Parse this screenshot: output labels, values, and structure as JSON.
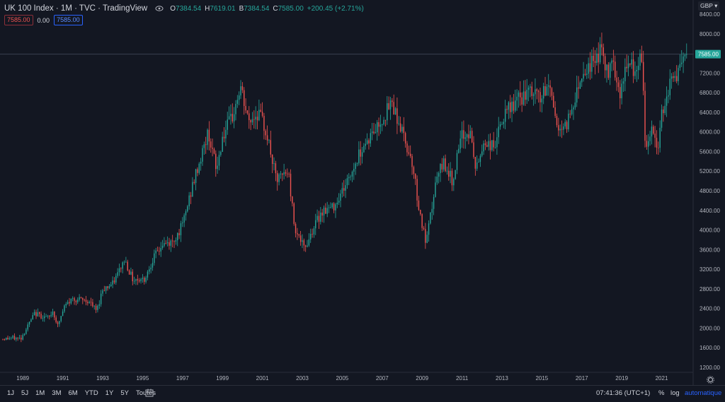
{
  "header": {
    "symbol": "UK 100 Index",
    "interval": "1M",
    "exchange": "TVC",
    "source": "TradingView",
    "open_label": "O",
    "open": "7384.54",
    "high_label": "H",
    "high": "7619.01",
    "low_label": "B",
    "low": "7384.54",
    "close_label": "C",
    "close": "7585.00",
    "change": "+200.45 (+2.71%)"
  },
  "orders": {
    "sell": "7585.00",
    "spread": "0.00",
    "buy": "7585.00"
  },
  "currency": "GBP",
  "bottom_bar": {
    "ranges": [
      "1J",
      "5J",
      "1M",
      "3M",
      "6M",
      "YTD",
      "1Y",
      "5Y",
      "Toutes"
    ],
    "clock": "07:41:36 (UTC+1)",
    "percent": "%",
    "log": "log",
    "auto": "automatique"
  },
  "colors": {
    "background": "#131722",
    "up": "#26a69a",
    "down": "#ef5350",
    "price_line": "#3a4050",
    "price_label_bg": "#26a69a",
    "axis_text": "#b2b5be",
    "accent": "#2962ff"
  },
  "chart_data": {
    "type": "candlestick",
    "timeframe": "monthly",
    "y_axis": {
      "ylim": [
        1200,
        8400
      ],
      "ticks": [
        1200,
        1600,
        2000,
        2400,
        2800,
        3200,
        3600,
        4000,
        4400,
        4800,
        5200,
        5600,
        6000,
        6400,
        6800,
        7200,
        7600,
        8000,
        8400
      ],
      "tick_labels": [
        "1200.00",
        "1600.00",
        "2000.00",
        "2400.00",
        "2800.00",
        "3200.00",
        "3600.00",
        "4000.00",
        "4400.00",
        "4800.00",
        "5200.00",
        "5600.00",
        "6000.00",
        "6400.00",
        "6800.00",
        "7200.00",
        "",
        "8000.00",
        "8400.00"
      ]
    },
    "x_axis": {
      "range": [
        1988.0,
        2022.4
      ],
      "tick_labels": [
        "1989",
        "1991",
        "1993",
        "1995",
        "1997",
        "1999",
        "2001",
        "2003",
        "2005",
        "2007",
        "2009",
        "2011",
        "2013",
        "2015",
        "2017",
        "2019",
        "2021"
      ]
    },
    "last_price": 7585.0,
    "last_price_label": "7585.00",
    "anchors": [
      [
        1988.0,
        1780
      ],
      [
        1988.5,
        1800
      ],
      [
        1988.9,
        1790
      ],
      [
        1989.6,
        2300
      ],
      [
        1990.3,
        2200
      ],
      [
        1990.5,
        2350
      ],
      [
        1990.75,
        2050
      ],
      [
        1991.1,
        2450
      ],
      [
        1991.5,
        2600
      ],
      [
        1992.3,
        2550
      ],
      [
        1992.7,
        2350
      ],
      [
        1993.0,
        2800
      ],
      [
        1993.5,
        2900
      ],
      [
        1994.1,
        3400
      ],
      [
        1994.5,
        3000
      ],
      [
        1995.1,
        3000
      ],
      [
        1995.5,
        3400
      ],
      [
        1996.0,
        3700
      ],
      [
        1996.5,
        3750
      ],
      [
        1997.0,
        4100
      ],
      [
        1997.5,
        4900
      ],
      [
        1998.3,
        6000
      ],
      [
        1998.7,
        5200
      ],
      [
        1999.0,
        5900
      ],
      [
        1999.5,
        6300
      ],
      [
        1999.9,
        6900
      ],
      [
        2000.3,
        6200
      ],
      [
        2000.8,
        6400
      ],
      [
        2001.2,
        6000
      ],
      [
        2001.7,
        5000
      ],
      [
        2002.3,
        5200
      ],
      [
        2002.6,
        4100
      ],
      [
        2003.1,
        3600
      ],
      [
        2003.5,
        4000
      ],
      [
        2004.0,
        4400
      ],
      [
        2004.5,
        4450
      ],
      [
        2005.0,
        4800
      ],
      [
        2005.5,
        5200
      ],
      [
        2006.0,
        5700
      ],
      [
        2006.4,
        5900
      ],
      [
        2006.9,
        6200
      ],
      [
        2007.5,
        6600
      ],
      [
        2008.0,
        6000
      ],
      [
        2008.5,
        5400
      ],
      [
        2008.9,
        4300
      ],
      [
        2009.2,
        3700
      ],
      [
        2009.7,
        5000
      ],
      [
        2010.1,
        5400
      ],
      [
        2010.5,
        5000
      ],
      [
        2011.0,
        5900
      ],
      [
        2011.4,
        6000
      ],
      [
        2011.7,
        5200
      ],
      [
        2012.1,
        5800
      ],
      [
        2012.6,
        5700
      ],
      [
        2013.0,
        6200
      ],
      [
        2013.4,
        6500
      ],
      [
        2014.0,
        6700
      ],
      [
        2014.5,
        6800
      ],
      [
        2015.0,
        6700
      ],
      [
        2015.4,
        7000
      ],
      [
        2015.7,
        6200
      ],
      [
        2016.1,
        6000
      ],
      [
        2016.5,
        6500
      ],
      [
        2017.0,
        7200
      ],
      [
        2017.5,
        7400
      ],
      [
        2018.0,
        7700
      ],
      [
        2018.3,
        7100
      ],
      [
        2018.5,
        7600
      ],
      [
        2018.9,
        6800
      ],
      [
        2019.3,
        7400
      ],
      [
        2019.7,
        7200
      ],
      [
        2020.0,
        7500
      ],
      [
        2020.2,
        5600
      ],
      [
        2020.5,
        6100
      ],
      [
        2020.8,
        5600
      ],
      [
        2021.0,
        6400
      ],
      [
        2021.4,
        7000
      ],
      [
        2021.8,
        7200
      ],
      [
        2022.1,
        7400
      ],
      [
        2022.3,
        7585
      ]
    ]
  }
}
